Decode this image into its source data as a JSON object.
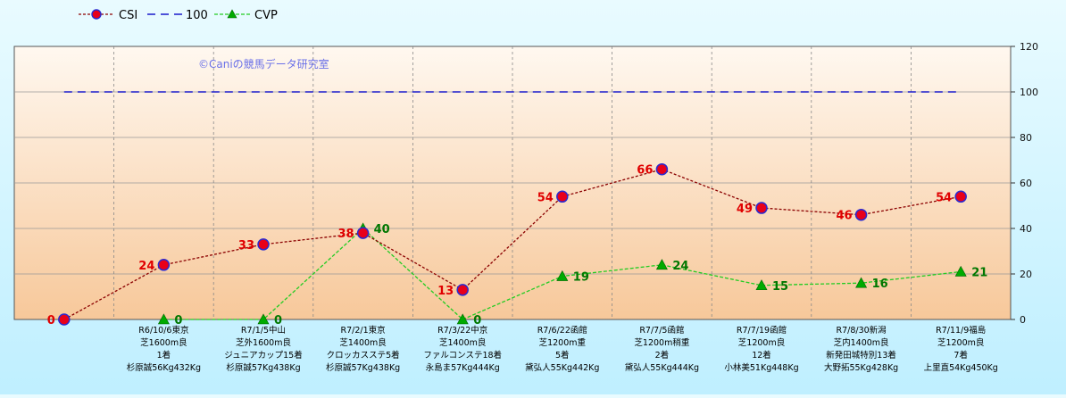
{
  "chart_data": {
    "type": "line",
    "watermark": "©Caniの競馬データ研究室",
    "ylim": [
      0,
      120
    ],
    "yticks": [
      0,
      20,
      40,
      60,
      80,
      100,
      120
    ],
    "categories": [
      [
        ""
      ],
      [
        "R6/10/6東京",
        "芝1600m良",
        "1着",
        "杉原誠56Kg432Kg"
      ],
      [
        "R7/1/5中山",
        "芝外1600m良",
        "ジュニアカップ15着",
        "杉原誠57Kg438Kg"
      ],
      [
        "R7/2/1東京",
        "芝1400m良",
        "クロッカスステ5着",
        "杉原誠57Kg438Kg"
      ],
      [
        "R7/3/22中京",
        "芝1400m良",
        "ファルコンステ18着",
        "永島ま57Kg444Kg"
      ],
      [
        "R7/6/22函館",
        "芝1200m重",
        "5着",
        "黛弘人55Kg442Kg"
      ],
      [
        "R7/7/5函館",
        "芝1200m稍重",
        "2着",
        "黛弘人55Kg444Kg"
      ],
      [
        "R7/7/19函館",
        "芝1200m良",
        "12着",
        "小林美51Kg448Kg"
      ],
      [
        "R7/8/30新潟",
        "芝内1400m良",
        "新発田城特別13着",
        "大野拓55Kg428Kg"
      ],
      [
        "R7/11/9福島",
        "芝1200m良",
        "7着",
        "上里直54Kg450Kg"
      ]
    ],
    "series": [
      {
        "name": "CSI",
        "values": [
          0,
          24,
          33,
          38,
          13,
          54,
          66,
          49,
          46,
          54
        ],
        "color": "#8b0000",
        "marker_fill": "#e8001a",
        "marker_stroke": "#2a2ad0",
        "label_color": "#e00000"
      },
      {
        "name": "100",
        "values": [
          100,
          100,
          100,
          100,
          100,
          100,
          100,
          100,
          100,
          100
        ],
        "color": "#1a1acc"
      },
      {
        "name": "CVP",
        "values": [
          null,
          0,
          0,
          40,
          0,
          19,
          24,
          15,
          16,
          21
        ],
        "color": "#22cc22",
        "marker_fill": "#00aa00",
        "label_color": "#007700"
      }
    ],
    "legend_position": "top-left",
    "grid": true
  }
}
